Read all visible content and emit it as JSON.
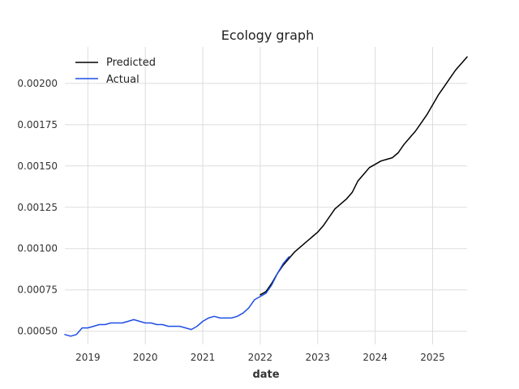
{
  "chart_data": {
    "type": "line",
    "title": "Ecology graph",
    "xlabel": "date",
    "ylabel": "",
    "x_range": [
      2018.6,
      2025.6
    ],
    "ylim": [
      0.00042,
      0.00222
    ],
    "x_ticks": [
      2019,
      2020,
      2021,
      2022,
      2023,
      2024,
      2025
    ],
    "x_tick_labels": [
      "2019",
      "2020",
      "2021",
      "2022",
      "2023",
      "2024",
      "2025"
    ],
    "y_ticks": [
      0.0005,
      0.00075,
      0.001,
      0.00125,
      0.0015,
      0.00175,
      0.002
    ],
    "y_tick_labels": [
      "0.00050",
      "0.00075",
      "0.00100",
      "0.00125",
      "0.00150",
      "0.00175",
      "0.00200"
    ],
    "grid": true,
    "legend": {
      "position": "top-left"
    },
    "series": [
      {
        "name": "Predicted",
        "color": "#000000",
        "points": [
          [
            2022.0,
            0.00072
          ],
          [
            2022.1,
            0.00074
          ],
          [
            2022.2,
            0.00079
          ],
          [
            2022.3,
            0.00085
          ],
          [
            2022.4,
            0.0009
          ],
          [
            2022.5,
            0.00094
          ],
          [
            2022.6,
            0.00098
          ],
          [
            2022.7,
            0.00101
          ],
          [
            2022.8,
            0.00104
          ],
          [
            2022.9,
            0.00107
          ],
          [
            2023.0,
            0.0011
          ],
          [
            2023.1,
            0.00114
          ],
          [
            2023.2,
            0.00119
          ],
          [
            2023.3,
            0.00124
          ],
          [
            2023.4,
            0.00127
          ],
          [
            2023.5,
            0.0013
          ],
          [
            2023.6,
            0.00134
          ],
          [
            2023.7,
            0.00141
          ],
          [
            2023.8,
            0.00145
          ],
          [
            2023.9,
            0.00149
          ],
          [
            2024.0,
            0.00151
          ],
          [
            2024.1,
            0.00153
          ],
          [
            2024.2,
            0.00154
          ],
          [
            2024.3,
            0.00155
          ],
          [
            2024.4,
            0.00158
          ],
          [
            2024.5,
            0.00163
          ],
          [
            2024.6,
            0.00167
          ],
          [
            2024.7,
            0.00171
          ],
          [
            2024.8,
            0.00176
          ],
          [
            2024.9,
            0.00181
          ],
          [
            2025.0,
            0.00187
          ],
          [
            2025.1,
            0.00193
          ],
          [
            2025.2,
            0.00198
          ],
          [
            2025.3,
            0.00203
          ],
          [
            2025.4,
            0.00208
          ],
          [
            2025.5,
            0.00212
          ],
          [
            2025.6,
            0.00216
          ]
        ]
      },
      {
        "name": "Actual",
        "color": "#1f4ee6",
        "points": [
          [
            2018.6,
            0.00048
          ],
          [
            2018.7,
            0.00047
          ],
          [
            2018.8,
            0.00048
          ],
          [
            2018.9,
            0.00052
          ],
          [
            2019.0,
            0.00052
          ],
          [
            2019.1,
            0.00053
          ],
          [
            2019.2,
            0.00054
          ],
          [
            2019.3,
            0.00054
          ],
          [
            2019.4,
            0.00055
          ],
          [
            2019.5,
            0.00055
          ],
          [
            2019.6,
            0.00055
          ],
          [
            2019.7,
            0.00056
          ],
          [
            2019.8,
            0.00057
          ],
          [
            2019.9,
            0.00056
          ],
          [
            2020.0,
            0.00055
          ],
          [
            2020.1,
            0.00055
          ],
          [
            2020.2,
            0.00054
          ],
          [
            2020.3,
            0.00054
          ],
          [
            2020.4,
            0.00053
          ],
          [
            2020.5,
            0.00053
          ],
          [
            2020.6,
            0.00053
          ],
          [
            2020.7,
            0.00052
          ],
          [
            2020.8,
            0.00051
          ],
          [
            2020.9,
            0.00053
          ],
          [
            2021.0,
            0.00056
          ],
          [
            2021.1,
            0.00058
          ],
          [
            2021.2,
            0.00059
          ],
          [
            2021.3,
            0.00058
          ],
          [
            2021.4,
            0.00058
          ],
          [
            2021.5,
            0.00058
          ],
          [
            2021.6,
            0.00059
          ],
          [
            2021.7,
            0.00061
          ],
          [
            2021.8,
            0.00064
          ],
          [
            2021.9,
            0.00069
          ],
          [
            2022.0,
            0.00071
          ],
          [
            2022.1,
            0.00073
          ],
          [
            2022.2,
            0.00078
          ],
          [
            2022.3,
            0.00085
          ],
          [
            2022.4,
            0.00091
          ],
          [
            2022.5,
            0.00095
          ]
        ]
      }
    ]
  }
}
